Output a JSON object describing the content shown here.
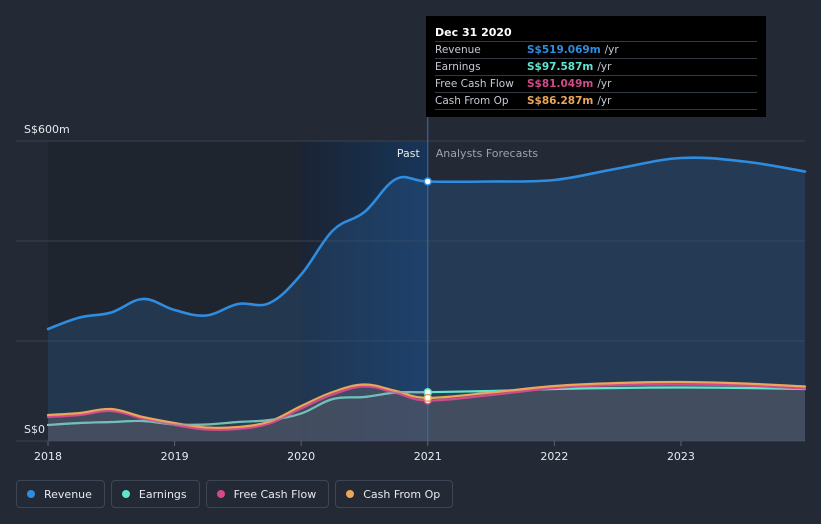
{
  "colors": {
    "background": "#232a36",
    "revenue": "#2e8de0",
    "earnings": "#5ee6cf",
    "free_cash_flow": "#d24a8b",
    "cash_from_op": "#eaa659"
  },
  "tooltip": {
    "date": "Dec 31 2020",
    "rows": [
      {
        "label": "Revenue",
        "value": "S$519.069m",
        "unit": "/yr",
        "color": "#2e8de0"
      },
      {
        "label": "Earnings",
        "value": "S$97.587m",
        "unit": "/yr",
        "color": "#5ee6cf"
      },
      {
        "label": "Free Cash Flow",
        "value": "S$81.049m",
        "unit": "/yr",
        "color": "#d24a8b"
      },
      {
        "label": "Cash From Op",
        "value": "S$86.287m",
        "unit": "/yr",
        "color": "#eaa659"
      }
    ]
  },
  "chart_data": {
    "type": "line",
    "title": "",
    "xlabel": "",
    "ylabel": "",
    "x_range": [
      2018.0,
      2023.98
    ],
    "ylim": [
      0,
      600
    ],
    "y_tick_labels": [
      {
        "value": 600,
        "label": "S$600m"
      },
      {
        "value": 0,
        "label": "S$0"
      }
    ],
    "gridlines_y": [
      0,
      200,
      400,
      600
    ],
    "x_tick_labels": [
      {
        "value": 2018,
        "label": "2018"
      },
      {
        "value": 2019,
        "label": "2019"
      },
      {
        "value": 2020,
        "label": "2020"
      },
      {
        "value": 2021,
        "label": "2021"
      },
      {
        "value": 2022,
        "label": "2022"
      },
      {
        "value": 2023,
        "label": "2023"
      }
    ],
    "past_forecast_divider": 2021.0,
    "past_label": "Past",
    "forecast_label": "Analysts Forecasts",
    "series": [
      {
        "name": "Revenue",
        "key": "revenue",
        "color": "#2e8de0",
        "points": [
          [
            2018.0,
            224
          ],
          [
            2018.25,
            247
          ],
          [
            2018.5,
            257
          ],
          [
            2018.75,
            284
          ],
          [
            2019.0,
            262
          ],
          [
            2019.25,
            251
          ],
          [
            2019.5,
            274
          ],
          [
            2019.75,
            276
          ],
          [
            2020.0,
            333
          ],
          [
            2020.25,
            421
          ],
          [
            2020.5,
            458
          ],
          [
            2020.75,
            524
          ],
          [
            2021.0,
            519
          ],
          [
            2021.5,
            519
          ],
          [
            2022.0,
            522
          ],
          [
            2022.5,
            545
          ],
          [
            2023.0,
            566
          ],
          [
            2023.5,
            559
          ],
          [
            2023.98,
            539
          ]
        ]
      },
      {
        "name": "Earnings",
        "key": "earnings",
        "color": "#5ee6cf",
        "points": [
          [
            2018.0,
            32
          ],
          [
            2018.25,
            36
          ],
          [
            2018.5,
            38
          ],
          [
            2018.75,
            40
          ],
          [
            2019.0,
            33
          ],
          [
            2019.25,
            33
          ],
          [
            2019.5,
            38
          ],
          [
            2019.75,
            42
          ],
          [
            2020.0,
            55
          ],
          [
            2020.25,
            84
          ],
          [
            2020.5,
            88
          ],
          [
            2020.75,
            97
          ],
          [
            2021.0,
            97.6
          ],
          [
            2021.5,
            100
          ],
          [
            2022.0,
            104
          ],
          [
            2022.5,
            106
          ],
          [
            2023.0,
            107
          ],
          [
            2023.5,
            106
          ],
          [
            2023.98,
            104
          ]
        ]
      },
      {
        "name": "Free Cash Flow",
        "key": "free_cash_flow",
        "color": "#d24a8b",
        "points": [
          [
            2018.0,
            48
          ],
          [
            2018.25,
            52
          ],
          [
            2018.5,
            60
          ],
          [
            2018.75,
            45
          ],
          [
            2019.0,
            32
          ],
          [
            2019.25,
            23
          ],
          [
            2019.5,
            24
          ],
          [
            2019.75,
            35
          ],
          [
            2020.0,
            65
          ],
          [
            2020.25,
            93
          ],
          [
            2020.5,
            109
          ],
          [
            2020.75,
            96
          ],
          [
            2021.0,
            81
          ],
          [
            2021.5,
            92
          ],
          [
            2022.0,
            106
          ],
          [
            2022.5,
            112
          ],
          [
            2023.0,
            113
          ],
          [
            2023.5,
            111
          ],
          [
            2023.98,
            105
          ]
        ]
      },
      {
        "name": "Cash From Op",
        "key": "cash_from_op",
        "color": "#eaa659",
        "points": [
          [
            2018.0,
            52
          ],
          [
            2018.25,
            56
          ],
          [
            2018.5,
            64
          ],
          [
            2018.75,
            48
          ],
          [
            2019.0,
            36
          ],
          [
            2019.25,
            27
          ],
          [
            2019.5,
            28
          ],
          [
            2019.75,
            39
          ],
          [
            2020.0,
            70
          ],
          [
            2020.25,
            98
          ],
          [
            2020.5,
            113
          ],
          [
            2020.75,
            100
          ],
          [
            2021.0,
            86.3
          ],
          [
            2021.5,
            97
          ],
          [
            2022.0,
            110
          ],
          [
            2022.5,
            116
          ],
          [
            2023.0,
            118
          ],
          [
            2023.5,
            115
          ],
          [
            2023.98,
            109
          ]
        ]
      }
    ]
  },
  "legend": [
    {
      "label": "Revenue",
      "color": "#2e8de0"
    },
    {
      "label": "Earnings",
      "color": "#5ee6cf"
    },
    {
      "label": "Free Cash Flow",
      "color": "#d24a8b"
    },
    {
      "label": "Cash From Op",
      "color": "#eaa659"
    }
  ]
}
